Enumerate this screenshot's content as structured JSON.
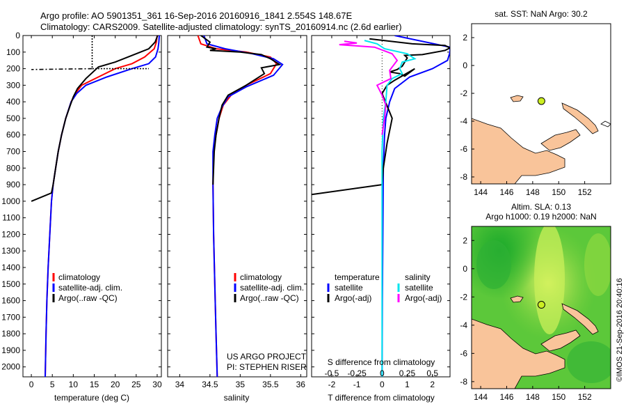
{
  "header": {
    "line1": "Argo profile: AO 5901351_361 16-Sep-2016 20160916_1841 2.554S 148.67E",
    "line2": "Climatology: CARS2009. Satellite-adjusted climatology: synTS_20160914.nc (2.6d earlier)"
  },
  "footer": {
    "project": "US ARGO PROJECT",
    "pi": "PI: STEPHEN RISER",
    "watermark": "©IMOS 21-Sep-2016 20:40:16"
  },
  "colors": {
    "climatology": "#ff0000",
    "satellite": "#0000ff",
    "argo": "#000000",
    "salinity_satellite": "#00e5ee",
    "salinity_argo": "#ff00ff",
    "land": "#f9c49a"
  },
  "chart_data": [
    {
      "type": "line",
      "name": "temperature-profile",
      "xlabel": "temperature (deg C)",
      "ylabel": "",
      "xlim": [
        -2,
        31
      ],
      "ylim": [
        2060,
        0
      ],
      "xticks": [
        0,
        5,
        10,
        15,
        20,
        25,
        30
      ],
      "yticks": [
        0,
        100,
        200,
        300,
        400,
        500,
        600,
        700,
        800,
        900,
        1000,
        1100,
        1200,
        1300,
        1400,
        1500,
        1600,
        1700,
        1800,
        1900,
        2000
      ],
      "legend": [
        "climatology",
        "satellite-adj. clim.",
        "Argo(..raw -QC)"
      ],
      "series": [
        {
          "name": "climatology",
          "color": "#ff0000",
          "points": [
            [
              30,
              0
            ],
            [
              29.8,
              40
            ],
            [
              29.3,
              80
            ],
            [
              27,
              130
            ],
            [
              24,
              170
            ],
            [
              20,
              200
            ],
            [
              16,
              250
            ],
            [
              12,
              300
            ],
            [
              10.5,
              350
            ],
            [
              9.5,
              400
            ],
            [
              8.2,
              500
            ],
            [
              7.2,
              600
            ],
            [
              6.4,
              700
            ],
            [
              5.8,
              800
            ],
            [
              5.2,
              900
            ],
            [
              4.8,
              1000
            ],
            [
              4.4,
              1200
            ],
            [
              4.0,
              1400
            ],
            [
              3.7,
              1600
            ],
            [
              3.5,
              1800
            ],
            [
              3.3,
              2060
            ]
          ]
        },
        {
          "name": "satellite",
          "color": "#0000ff",
          "points": [
            [
              30.5,
              0
            ],
            [
              30.4,
              40
            ],
            [
              30.2,
              80
            ],
            [
              29.6,
              130
            ],
            [
              28,
              170
            ],
            [
              24,
              200
            ],
            [
              18,
              250
            ],
            [
              13,
              300
            ],
            [
              10.8,
              350
            ],
            [
              9.5,
              400
            ],
            [
              8.2,
              500
            ],
            [
              7.2,
              600
            ],
            [
              6.4,
              700
            ],
            [
              5.8,
              800
            ],
            [
              5.2,
              900
            ],
            [
              4.8,
              1000
            ],
            [
              4.4,
              1200
            ],
            [
              4.0,
              1400
            ],
            [
              3.7,
              1600
            ],
            [
              3.5,
              1800
            ],
            [
              3.3,
              2060
            ]
          ]
        },
        {
          "name": "argo",
          "color": "#000000",
          "points": [
            [
              30.1,
              0
            ],
            [
              29.5,
              40
            ],
            [
              28,
              80
            ],
            [
              25,
              110
            ],
            [
              20,
              160
            ],
            [
              16,
              190
            ],
            [
              13,
              260
            ],
            [
              11,
              320
            ],
            [
              10,
              370
            ],
            [
              9.3,
              420
            ],
            [
              8.2,
              500
            ],
            [
              7.2,
              600
            ],
            [
              6.4,
              700
            ],
            [
              5.8,
              800
            ],
            [
              5.2,
              900
            ],
            [
              4.8,
              950
            ],
            [
              0,
              1000
            ]
          ]
        },
        {
          "name": "argo-spike",
          "color": "#000000",
          "dash": "6,3,2,3",
          "points": [
            [
              14.5,
              200
            ],
            [
              0,
              205
            ]
          ]
        },
        {
          "name": "mld-marker",
          "color": "#000000",
          "dash": "2,2",
          "points": [
            [
              14.5,
              0
            ],
            [
              14.5,
              200
            ],
            [
              28,
              200
            ]
          ]
        }
      ]
    },
    {
      "type": "line",
      "name": "salinity-profile",
      "xlabel": "salinity",
      "ylabel": "",
      "xlim": [
        33.8,
        36.1
      ],
      "ylim": [
        2060,
        0
      ],
      "xticks": [
        34,
        34.5,
        35,
        35.5,
        36
      ],
      "legend": [
        "climatology",
        "satellite-adj. clim.",
        "Argo(..raw -QC)"
      ],
      "series": [
        {
          "name": "climatology",
          "color": "#ff0000",
          "points": [
            [
              34.3,
              0
            ],
            [
              34.35,
              50
            ],
            [
              34.6,
              80
            ],
            [
              35.1,
              100
            ],
            [
              35.5,
              130
            ],
            [
              35.6,
              170
            ],
            [
              35.5,
              230
            ],
            [
              35.1,
              300
            ],
            [
              34.85,
              360
            ],
            [
              34.72,
              420
            ],
            [
              34.65,
              500
            ],
            [
              34.6,
              600
            ],
            [
              34.56,
              700
            ],
            [
              34.55,
              900
            ],
            [
              34.56,
              1200
            ],
            [
              34.58,
              1500
            ],
            [
              34.6,
              1800
            ],
            [
              34.62,
              2060
            ]
          ]
        },
        {
          "name": "satellite",
          "color": "#0000ff",
          "points": [
            [
              34.4,
              0
            ],
            [
              34.45,
              50
            ],
            [
              34.75,
              80
            ],
            [
              35.2,
              110
            ],
            [
              35.55,
              140
            ],
            [
              35.7,
              175
            ],
            [
              35.55,
              240
            ],
            [
              35.1,
              310
            ],
            [
              34.8,
              370
            ],
            [
              34.7,
              430
            ],
            [
              34.62,
              500
            ],
            [
              34.58,
              600
            ],
            [
              34.55,
              700
            ],
            [
              34.55,
              900
            ],
            [
              34.56,
              1200
            ],
            [
              34.58,
              1500
            ],
            [
              34.6,
              1800
            ],
            [
              34.62,
              2060
            ]
          ]
        },
        {
          "name": "argo",
          "color": "#000000",
          "points": [
            [
              34.35,
              0
            ],
            [
              34.5,
              40
            ],
            [
              34.45,
              70
            ],
            [
              34.6,
              80
            ],
            [
              34.5,
              90
            ],
            [
              35,
              100
            ],
            [
              35.35,
              115
            ],
            [
              35.5,
              140
            ],
            [
              35.65,
              175
            ],
            [
              35.35,
              195
            ],
            [
              35.4,
              230
            ],
            [
              35.1,
              300
            ],
            [
              34.8,
              360
            ],
            [
              34.7,
              420
            ],
            [
              34.65,
              500
            ],
            [
              34.6,
              600
            ],
            [
              34.57,
              700
            ],
            [
              34.55,
              900
            ]
          ]
        }
      ]
    },
    {
      "type": "line",
      "name": "difference-profile",
      "xlabel": "T difference from climatology",
      "ylabel": "",
      "xlim": [
        -2.8,
        2.7
      ],
      "ylim": [
        2060,
        0
      ],
      "xticks": [
        -2,
        -1,
        0,
        1,
        2
      ],
      "top_label": "S difference from climatology",
      "top_ticks": [
        "-0.5",
        "-0.25",
        "0",
        "0.25",
        "0.5"
      ],
      "top_tick_values": [
        -0.5,
        -0.25,
        0,
        0.25,
        0.5
      ],
      "legend_temperature_title": "temperature",
      "legend_salinity_title": "salinity",
      "legend": [
        "satellite",
        "Argo(-adj)",
        "satellite",
        "Argo(-adj)"
      ],
      "series": [
        {
          "name": "t-satellite",
          "color": "#0000ff",
          "points": [
            [
              0.5,
              0
            ],
            [
              2.7,
              70
            ],
            [
              2.7,
              100
            ],
            [
              2.6,
              150
            ],
            [
              2.0,
              200
            ],
            [
              1.1,
              250
            ],
            [
              0.5,
              320
            ],
            [
              0.3,
              400
            ],
            [
              0.15,
              500
            ],
            [
              0.1,
              600
            ],
            [
              0.05,
              800
            ],
            [
              0.03,
              1200
            ],
            [
              0.01,
              1600
            ],
            [
              0,
              2060
            ]
          ]
        },
        {
          "name": "t-argo",
          "color": "#000000",
          "points": [
            [
              -0.5,
              20
            ],
            [
              1.2,
              50
            ],
            [
              2.5,
              60
            ],
            [
              2.7,
              75
            ],
            [
              2.5,
              90
            ],
            [
              1.6,
              115
            ],
            [
              0.9,
              120
            ],
            [
              1.0,
              135
            ],
            [
              0.8,
              185
            ],
            [
              0.6,
              205
            ],
            [
              0.3,
              220
            ],
            [
              0.7,
              230
            ],
            [
              0.9,
              245
            ],
            [
              1.3,
              200
            ],
            [
              0.5,
              270
            ],
            [
              0.2,
              300
            ],
            [
              0,
              350
            ],
            [
              0.4,
              500
            ],
            [
              0.2,
              650
            ],
            [
              0.05,
              800
            ],
            [
              0,
              900
            ],
            [
              -2.8,
              960
            ]
          ]
        },
        {
          "name": "s-satellite",
          "color": "#00e5ee",
          "points": [
            [
              -0.7,
              30
            ],
            [
              -0.2,
              50
            ],
            [
              0.1,
              80
            ],
            [
              1.0,
              110
            ],
            [
              1.3,
              140
            ],
            [
              0.8,
              160
            ],
            [
              0.7,
              200
            ],
            [
              0.8,
              230
            ],
            [
              0.4,
              260
            ],
            [
              0.2,
              300
            ],
            [
              0.15,
              400
            ],
            [
              0.05,
              500
            ],
            [
              0,
              700
            ],
            [
              0,
              2060
            ]
          ]
        },
        {
          "name": "s-argo",
          "color": "#ff00ff",
          "points": [
            [
              -1.5,
              35
            ],
            [
              -1.0,
              45
            ],
            [
              -1.7,
              55
            ],
            [
              -0.3,
              70
            ],
            [
              0.4,
              110
            ],
            [
              0.6,
              150
            ],
            [
              0.3,
              210
            ],
            [
              0.35,
              260
            ],
            [
              -0.2,
              300
            ],
            [
              0,
              360
            ],
            [
              0.15,
              420
            ],
            [
              0.1,
              500
            ],
            [
              0,
              600
            ]
          ]
        }
      ]
    },
    {
      "type": "map",
      "name": "sst-map",
      "title": "sat. SST: NaN Argo: 30.2",
      "xlim": [
        143.3,
        154
      ],
      "ylim": [
        -8.5,
        3
      ],
      "xticks": [
        144,
        146,
        148,
        150,
        152
      ],
      "yticks": [
        2,
        0,
        -2,
        -4,
        -6,
        -8
      ],
      "marker": {
        "lon": 148.67,
        "lat": -2.554,
        "color": "#ccee22"
      }
    },
    {
      "type": "map",
      "name": "sla-map",
      "title_line1": "Altim. SLA: 0.13",
      "title_line2": "Argo h1000: 0.19 h2000: NaN",
      "xlim": [
        143.3,
        154
      ],
      "ylim": [
        -8.5,
        3
      ],
      "xticks": [
        144,
        146,
        148,
        150,
        152
      ],
      "yticks": [
        2,
        0,
        -2,
        -4,
        -6,
        -8
      ],
      "marker": {
        "lon": 148.67,
        "lat": -2.554,
        "color": "#ccee22"
      }
    }
  ]
}
